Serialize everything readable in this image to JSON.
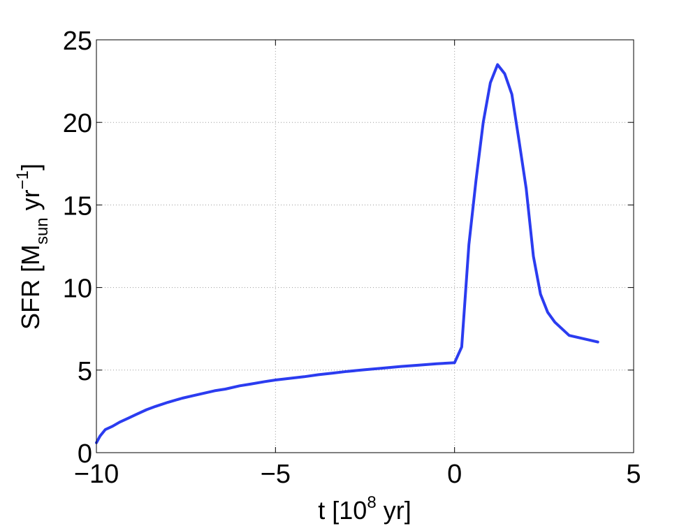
{
  "chart_data": {
    "type": "line",
    "title": "",
    "xlabel": {
      "prefix": "t [10",
      "superscript": "8",
      "suffix": " yr]"
    },
    "ylabel": {
      "prefix": "SFR [M",
      "subscript": "sun",
      "middle": " yr",
      "superscript": "−1",
      "suffix": "]"
    },
    "xlim": [
      -10,
      5
    ],
    "ylim": [
      0,
      25
    ],
    "xticks": [
      -10,
      -5,
      0,
      5
    ],
    "xtick_labels": [
      "−10",
      "−5",
      "0",
      "5"
    ],
    "yticks": [
      0,
      5,
      10,
      15,
      20,
      25
    ],
    "ytick_labels": [
      "0",
      "5",
      "10",
      "15",
      "20",
      "25"
    ],
    "grid": true,
    "legend": "none",
    "series": [
      {
        "color": "#2b3cf0",
        "x": [
          -10.0,
          -9.9,
          -9.75,
          -9.55,
          -9.35,
          -9.1,
          -8.9,
          -8.6,
          -8.35,
          -8.0,
          -7.6,
          -7.3,
          -7.0,
          -6.7,
          -6.4,
          -6.0,
          -5.7,
          -5.3,
          -5.0,
          -4.6,
          -4.2,
          -3.8,
          -3.4,
          -3.0,
          -2.5,
          -2.0,
          -1.5,
          -1.0,
          -0.5,
          0.0,
          0.2,
          0.4,
          0.6,
          0.8,
          1.0,
          1.2,
          1.4,
          1.6,
          1.8,
          2.0,
          2.2,
          2.4,
          2.6,
          2.8,
          3.2,
          4.0
        ],
        "y": [
          0.6,
          1.0,
          1.4,
          1.6,
          1.85,
          2.1,
          2.3,
          2.6,
          2.8,
          3.05,
          3.3,
          3.45,
          3.6,
          3.75,
          3.85,
          4.05,
          4.15,
          4.3,
          4.4,
          4.5,
          4.6,
          4.72,
          4.82,
          4.92,
          5.02,
          5.12,
          5.22,
          5.3,
          5.38,
          5.45,
          6.4,
          12.6,
          16.5,
          20.0,
          22.4,
          23.5,
          22.95,
          21.7,
          18.9,
          16.0,
          11.9,
          9.6,
          8.5,
          7.9,
          7.1,
          6.7
        ]
      }
    ]
  }
}
